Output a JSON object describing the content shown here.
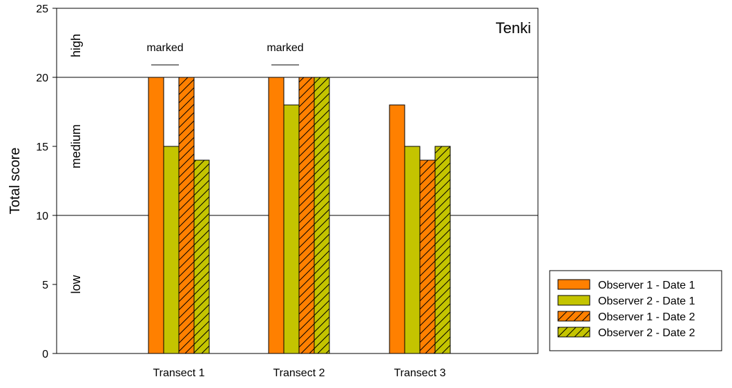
{
  "chart_data": {
    "type": "bar",
    "title": "Tenki",
    "xlabel": "",
    "ylabel": "Total score",
    "ylim": [
      0,
      25
    ],
    "yticks": [
      "0",
      "5",
      "10",
      "15",
      "20",
      "25"
    ],
    "categories": [
      "Transect 1",
      "Transect 2",
      "Transect 3"
    ],
    "series": [
      {
        "name": "Observer 1 - Date 1",
        "values": [
          20,
          20,
          18
        ],
        "color": "#ff8000",
        "hatched": false
      },
      {
        "name": "Observer 2 - Date 1",
        "values": [
          15,
          18,
          15
        ],
        "color": "#c4c400",
        "hatched": false
      },
      {
        "name": "Observer 1 - Date 2",
        "values": [
          20,
          20,
          14
        ],
        "color": "#ff8000",
        "hatched": true
      },
      {
        "name": "Observer 2 - Date 2",
        "values": [
          14,
          20,
          15
        ],
        "color": "#c4c400",
        "hatched": true
      }
    ],
    "reference_lines": [
      10,
      20
    ],
    "bands": [
      {
        "label": "low",
        "from": 0,
        "to": 10
      },
      {
        "label": "medium",
        "from": 10,
        "to": 20
      },
      {
        "label": "high",
        "from": 20,
        "to": 25
      }
    ],
    "annotations": [
      {
        "text": "marked",
        "category": "Transect 1",
        "series_span": [
          0,
          1
        ]
      },
      {
        "text": "marked",
        "category": "Transect 2",
        "series_span": [
          0,
          1
        ]
      }
    ],
    "grid": false,
    "legend_position": "right"
  }
}
